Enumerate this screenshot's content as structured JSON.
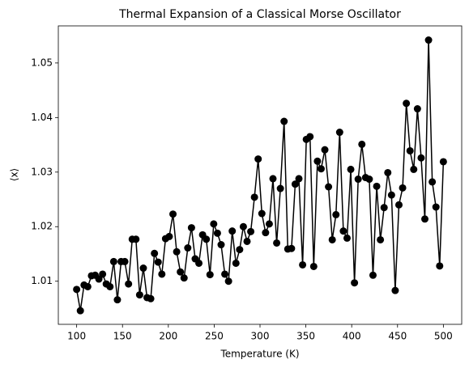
{
  "chart_data": {
    "type": "line",
    "title": "Thermal Expansion of a Classical Morse Oscillator",
    "xlabel": "Temperature (K)",
    "ylabel": "⟨x⟩",
    "xlim": [
      80,
      520
    ],
    "ylim": [
      1.0021,
      1.0568
    ],
    "xticks": [
      100,
      150,
      200,
      250,
      300,
      350,
      400,
      450,
      500
    ],
    "yticks": [
      1.01,
      1.02,
      1.03,
      1.04,
      1.05
    ],
    "x": [
      100,
      104.04,
      108.08,
      112.12,
      116.16,
      120.2,
      124.24,
      128.28,
      132.32,
      136.36,
      140.4,
      144.44,
      148.48,
      152.53,
      156.57,
      160.61,
      164.65,
      168.69,
      172.73,
      176.77,
      180.81,
      184.85,
      188.89,
      192.93,
      196.97,
      201.01,
      205.05,
      209.09,
      213.13,
      217.17,
      221.21,
      225.25,
      229.29,
      233.33,
      237.37,
      241.41,
      245.45,
      249.49,
      253.54,
      257.58,
      261.62,
      265.66,
      269.7,
      273.74,
      277.78,
      281.82,
      285.86,
      289.9,
      293.94,
      297.98,
      302.02,
      306.06,
      310.1,
      314.14,
      318.18,
      322.22,
      326.26,
      330.3,
      334.34,
      338.38,
      342.42,
      346.46,
      350.51,
      354.55,
      358.59,
      362.63,
      366.67,
      370.71,
      374.75,
      378.79,
      382.83,
      386.87,
      390.91,
      394.95,
      398.99,
      403.03,
      407.07,
      411.11,
      415.15,
      419.19,
      423.23,
      427.27,
      431.31,
      435.35,
      439.39,
      443.43,
      447.47,
      451.52,
      455.56,
      459.6,
      463.64,
      467.68,
      471.72,
      475.76,
      479.8,
      483.84,
      487.88,
      491.92,
      495.96,
      500
    ],
    "series": [
      {
        "color": "#000000",
        "values": [
          1.0085,
          1.0046,
          1.0093,
          1.009,
          1.011,
          1.0111,
          1.0104,
          1.0113,
          1.0095,
          1.009,
          1.0136,
          1.0066,
          1.0136,
          1.0136,
          1.0095,
          1.0177,
          1.0177,
          1.0075,
          1.0124,
          1.007,
          1.0068,
          1.0151,
          1.0135,
          1.0113,
          1.0178,
          1.0182,
          1.0223,
          1.0154,
          1.0117,
          1.0106,
          1.0161,
          1.0198,
          1.0141,
          1.0133,
          1.0185,
          1.0177,
          1.0112,
          1.0205,
          1.0188,
          1.0167,
          1.0113,
          1.01,
          1.0192,
          1.0133,
          1.0158,
          1.02,
          1.0173,
          1.0191,
          1.0254,
          1.0324,
          1.0224,
          1.0189,
          1.0205,
          1.0288,
          1.017,
          1.027,
          1.0393,
          1.0159,
          1.016,
          1.0278,
          1.0288,
          1.013,
          1.036,
          1.0365,
          1.0127,
          1.032,
          1.0306,
          1.0341,
          1.0273,
          1.0176,
          1.0222,
          1.0373,
          1.0192,
          1.0179,
          1.0305,
          1.0097,
          1.0287,
          1.0351,
          1.029,
          1.0287,
          1.0111,
          1.0274,
          1.0176,
          1.0235,
          1.0299,
          1.0258,
          1.0083,
          1.024,
          1.0271,
          1.0426,
          1.0339,
          1.0305,
          1.0416,
          1.0326,
          1.0214,
          1.0542,
          1.0282,
          1.0236,
          1.0128,
          1.0319
        ]
      }
    ]
  }
}
